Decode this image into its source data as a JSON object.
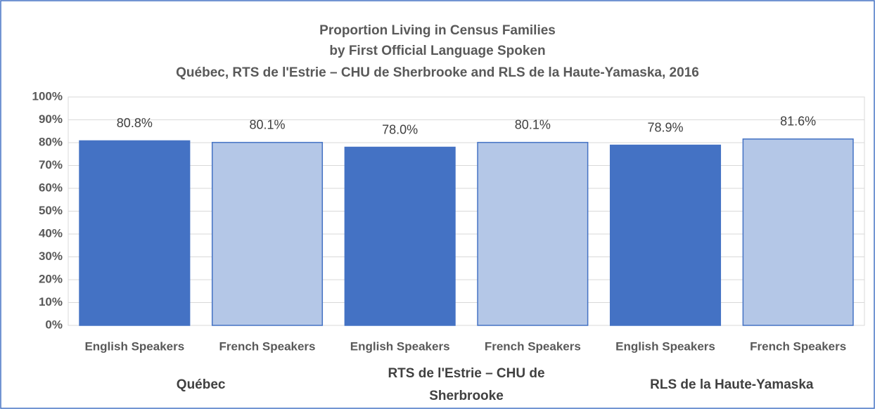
{
  "chart_data": {
    "type": "bar",
    "title": "Proportion Living in Census Families",
    "subtitle": "by First Official Language Spoken",
    "subtitle2": "Québec, RTS de l'Estrie – CHU de Sherbrooke and RLS de la Haute-Yamaska, 2016",
    "categories": [
      "English Speakers",
      "French Speakers",
      "English Speakers",
      "French Speakers",
      "English Speakers",
      "French Speakers"
    ],
    "groups": [
      "Québec",
      "RTS de l'Estrie – CHU de Sherbrooke",
      "RLS de la Haute-Yamaska"
    ],
    "values": [
      80.8,
      80.1,
      78.0,
      80.1,
      78.9,
      81.6
    ],
    "value_labels": [
      "80.8%",
      "80.1%",
      "78.0%",
      "80.1%",
      "78.9%",
      "81.6%"
    ],
    "colors": [
      "#4472c4",
      "#b4c7e7",
      "#4472c4",
      "#b4c7e7",
      "#4472c4",
      "#b4c7e7"
    ],
    "ylim": [
      0,
      100
    ],
    "yticks": [
      {
        "value": 0,
        "label": "0%"
      },
      {
        "value": 10,
        "label": "10%"
      },
      {
        "value": 20,
        "label": "20%"
      },
      {
        "value": 30,
        "label": "30%"
      },
      {
        "value": 40,
        "label": "40%"
      },
      {
        "value": 50,
        "label": "50%"
      },
      {
        "value": 60,
        "label": "60%"
      },
      {
        "value": 70,
        "label": "70%"
      },
      {
        "value": 80,
        "label": "80%"
      },
      {
        "value": 90,
        "label": "90%"
      },
      {
        "value": 100,
        "label": "100%"
      }
    ],
    "grid": true
  }
}
